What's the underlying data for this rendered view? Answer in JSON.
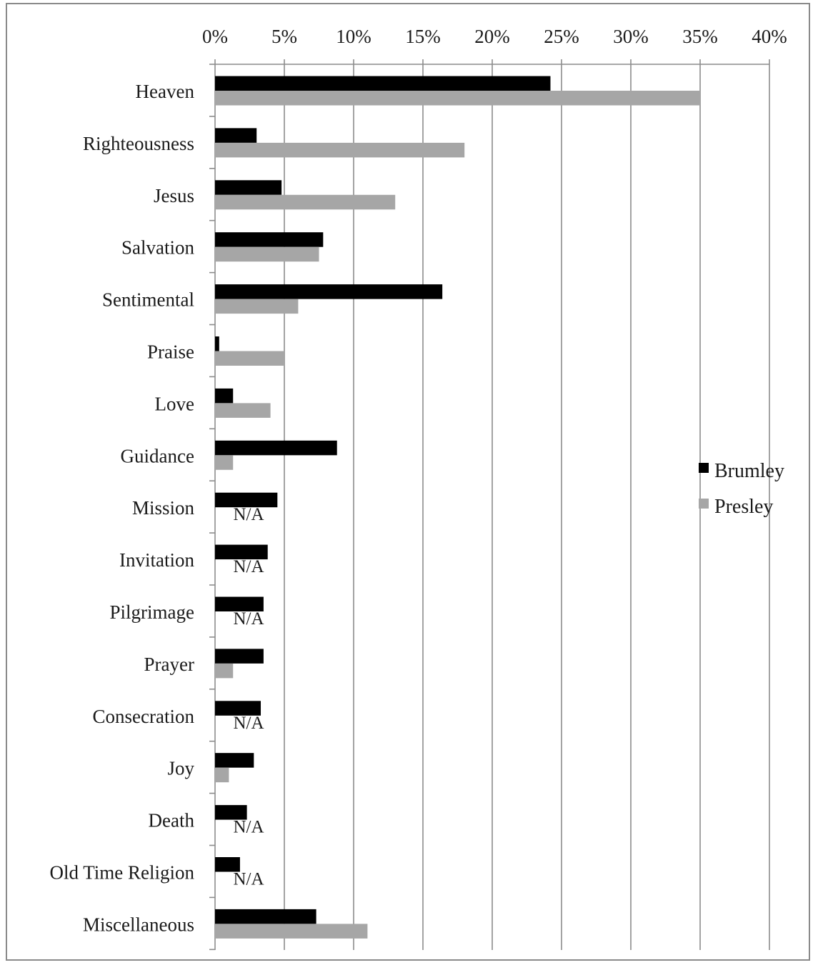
{
  "chart_data": {
    "type": "bar",
    "orientation": "horizontal",
    "categories": [
      "Heaven",
      "Righteousness",
      "Jesus",
      "Salvation",
      "Sentimental",
      "Praise",
      "Love",
      "Guidance",
      "Mission",
      "Invitation",
      "Pilgrimage",
      "Prayer",
      "Consecration",
      "Joy",
      "Death",
      "Old Time Religion",
      "Miscellaneous"
    ],
    "series": [
      {
        "name": "Brumley",
        "color": "#000000",
        "values": [
          24.2,
          3.0,
          4.8,
          7.8,
          16.4,
          0.3,
          1.3,
          8.8,
          4.5,
          3.8,
          3.5,
          3.5,
          3.3,
          2.8,
          2.3,
          1.8,
          7.3
        ]
      },
      {
        "name": "Presley",
        "color": "#a6a6a6",
        "values": [
          35.0,
          18.0,
          13.0,
          7.5,
          6.0,
          5.0,
          4.0,
          1.3,
          null,
          null,
          null,
          1.3,
          null,
          1.0,
          null,
          null,
          11.0
        ]
      }
    ],
    "missing_label": "N/A",
    "xlim": [
      0,
      40
    ],
    "xticks": [
      0,
      5,
      10,
      15,
      20,
      25,
      30,
      35,
      40
    ],
    "xtick_labels": [
      "0%",
      "5%",
      "10%",
      "15%",
      "20%",
      "25%",
      "30%",
      "35%",
      "40%"
    ],
    "x_axis_position": "top",
    "grid": "vertical",
    "legend_position": "right",
    "title": "",
    "xlabel": "",
    "ylabel": ""
  }
}
